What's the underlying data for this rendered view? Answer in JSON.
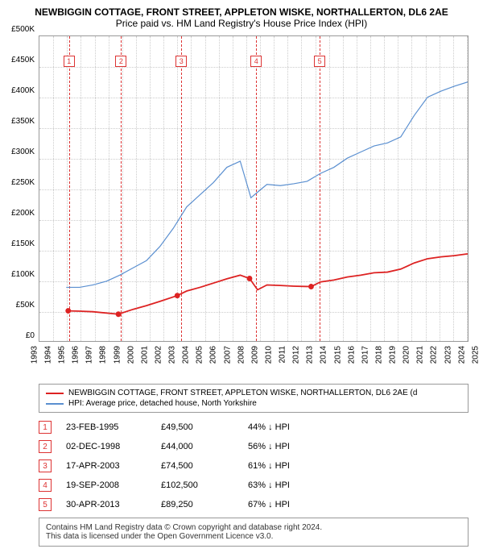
{
  "title": {
    "line1": "NEWBIGGIN COTTAGE, FRONT STREET, APPLETON WISKE, NORTHALLERTON, DL6 2AE",
    "line2": "Price paid vs. HM Land Registry's House Price Index (HPI)"
  },
  "chart": {
    "type": "line",
    "background_color": "#ffffff",
    "grid_color": "#cccccc",
    "ylim": [
      0,
      500000
    ],
    "ytick_step": 50000,
    "yticks": [
      "£0",
      "£50K",
      "£100K",
      "£150K",
      "£200K",
      "£250K",
      "£300K",
      "£350K",
      "£400K",
      "£450K",
      "£500K"
    ],
    "xlim": [
      1993,
      2025
    ],
    "xticks": [
      "1993",
      "1994",
      "1995",
      "1996",
      "1997",
      "1998",
      "1999",
      "2000",
      "2001",
      "2002",
      "2003",
      "2004",
      "2005",
      "2006",
      "2007",
      "2008",
      "2009",
      "2010",
      "2011",
      "2012",
      "2013",
      "2014",
      "2015",
      "2016",
      "2017",
      "2018",
      "2019",
      "2020",
      "2021",
      "2022",
      "2023",
      "2024",
      "2025"
    ],
    "series": [
      {
        "name": "hpi",
        "color": "#5a8fd0",
        "label": "HPI: Average price, detached house, North Yorkshire",
        "data": [
          [
            1995,
            88000
          ],
          [
            1996,
            88000
          ],
          [
            1997,
            92000
          ],
          [
            1998,
            98000
          ],
          [
            1999,
            108000
          ],
          [
            2000,
            120000
          ],
          [
            2001,
            132000
          ],
          [
            2002,
            155000
          ],
          [
            2003,
            185000
          ],
          [
            2004,
            220000
          ],
          [
            2005,
            240000
          ],
          [
            2006,
            260000
          ],
          [
            2007,
            285000
          ],
          [
            2008,
            295000
          ],
          [
            2008.8,
            235000
          ],
          [
            2009.5,
            248000
          ],
          [
            2010,
            257000
          ],
          [
            2011,
            255000
          ],
          [
            2012,
            258000
          ],
          [
            2013,
            262000
          ],
          [
            2014,
            275000
          ],
          [
            2015,
            285000
          ],
          [
            2016,
            300000
          ],
          [
            2017,
            310000
          ],
          [
            2018,
            320000
          ],
          [
            2019,
            325000
          ],
          [
            2020,
            335000
          ],
          [
            2021,
            370000
          ],
          [
            2022,
            400000
          ],
          [
            2023,
            410000
          ],
          [
            2024,
            418000
          ],
          [
            2025,
            425000
          ]
        ]
      },
      {
        "name": "price-paid",
        "color": "#dd2222",
        "label": "NEWBIGGIN COTTAGE, FRONT STREET, APPLETON WISKE, NORTHALLERTON, DL6 2AE (d",
        "data": [
          [
            1995.15,
            49500
          ],
          [
            1996,
            49000
          ],
          [
            1997,
            48000
          ],
          [
            1998.9,
            44000
          ],
          [
            2000,
            52000
          ],
          [
            2001,
            58000
          ],
          [
            2002,
            65000
          ],
          [
            2003.3,
            74500
          ],
          [
            2004,
            82000
          ],
          [
            2005,
            88000
          ],
          [
            2006,
            95000
          ],
          [
            2007,
            102000
          ],
          [
            2008,
            108000
          ],
          [
            2008.7,
            102500
          ],
          [
            2009.3,
            84000
          ],
          [
            2010,
            92000
          ],
          [
            2011,
            91000
          ],
          [
            2012,
            90000
          ],
          [
            2013.3,
            89250
          ],
          [
            2014,
            97000
          ],
          [
            2015,
            100000
          ],
          [
            2016,
            105000
          ],
          [
            2017,
            108000
          ],
          [
            2018,
            112000
          ],
          [
            2019,
            113000
          ],
          [
            2020,
            118000
          ],
          [
            2021,
            128000
          ],
          [
            2022,
            135000
          ],
          [
            2023,
            138000
          ],
          [
            2024,
            140000
          ],
          [
            2025,
            143000
          ]
        ],
        "markers": [
          [
            1995.15,
            49500
          ],
          [
            1998.9,
            44000
          ],
          [
            2003.3,
            74500
          ],
          [
            2008.7,
            102500
          ],
          [
            2013.3,
            89250
          ]
        ]
      }
    ],
    "events": [
      {
        "n": "1",
        "year": 1995.15
      },
      {
        "n": "2",
        "year": 1998.92
      },
      {
        "n": "3",
        "year": 2003.29
      },
      {
        "n": "4",
        "year": 2008.72
      },
      {
        "n": "5",
        "year": 2013.33
      }
    ]
  },
  "legend": [
    {
      "color": "#dd2222",
      "label": "NEWBIGGIN COTTAGE, FRONT STREET, APPLETON WISKE, NORTHALLERTON, DL6 2AE (d"
    },
    {
      "color": "#5a8fd0",
      "label": "HPI: Average price, detached house, North Yorkshire"
    }
  ],
  "table": [
    {
      "n": "1",
      "date": "23-FEB-1995",
      "price": "£49,500",
      "diff": "44% ↓ HPI"
    },
    {
      "n": "2",
      "date": "02-DEC-1998",
      "price": "£44,000",
      "diff": "56% ↓ HPI"
    },
    {
      "n": "3",
      "date": "17-APR-2003",
      "price": "£74,500",
      "diff": "61% ↓ HPI"
    },
    {
      "n": "4",
      "date": "19-SEP-2008",
      "price": "£102,500",
      "diff": "63% ↓ HPI"
    },
    {
      "n": "5",
      "date": "30-APR-2013",
      "price": "£89,250",
      "diff": "67% ↓ HPI"
    }
  ],
  "footer": {
    "line1": "Contains HM Land Registry data © Crown copyright and database right 2024.",
    "line2": "This data is licensed under the Open Government Licence v3.0."
  }
}
